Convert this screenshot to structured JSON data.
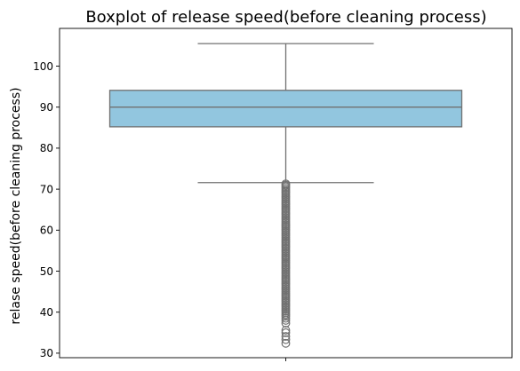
{
  "chart_data": {
    "type": "boxplot",
    "title": "Boxplot of release speed(before cleaning process)",
    "xlabel": "",
    "ylabel": "relase speed(before cleaning process)",
    "ylim": [
      28.9,
      109.2
    ],
    "yticks": [
      30,
      40,
      50,
      60,
      70,
      80,
      90,
      100
    ],
    "grid": false,
    "box_color": "#92c6df",
    "line_color": "#707070",
    "stats": {
      "whisker_low": 71.6,
      "q1": 85.2,
      "median": 90.0,
      "q3": 94.1,
      "whisker_high": 105.5
    },
    "outliers": [
      71.3,
      71.0,
      70.6,
      70.2,
      69.8,
      69.4,
      69.0,
      68.6,
      68.2,
      67.8,
      67.4,
      67.0,
      66.6,
      66.2,
      65.8,
      65.4,
      65.0,
      64.6,
      64.2,
      63.8,
      63.4,
      63.0,
      62.6,
      62.2,
      61.8,
      61.4,
      61.0,
      60.6,
      60.2,
      59.8,
      59.4,
      59.0,
      58.6,
      58.2,
      57.8,
      57.4,
      57.0,
      56.6,
      56.2,
      55.8,
      55.4,
      55.0,
      54.6,
      54.2,
      53.8,
      53.4,
      53.0,
      52.6,
      52.2,
      51.8,
      51.4,
      51.0,
      50.6,
      50.2,
      49.8,
      49.4,
      49.0,
      48.6,
      48.2,
      47.8,
      47.4,
      47.0,
      46.6,
      46.2,
      45.8,
      45.4,
      45.0,
      44.6,
      44.2,
      43.8,
      43.4,
      43.0,
      42.6,
      42.2,
      41.8,
      41.4,
      41.0,
      40.6,
      40.2,
      39.8,
      39.4,
      39.0,
      38.5,
      38.0,
      37.3,
      35.6,
      35.0,
      34.1,
      33.3,
      32.4
    ]
  }
}
